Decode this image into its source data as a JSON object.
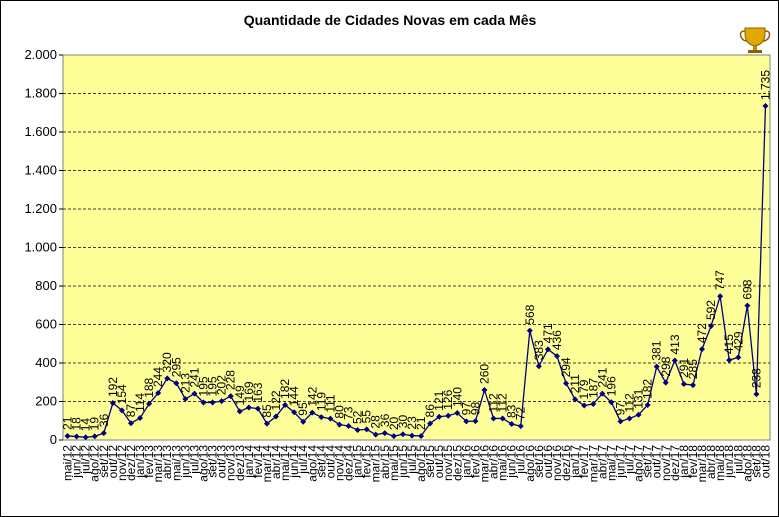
{
  "chart_data": {
    "type": "line",
    "title": "Quantidade de Cidades Novas em cada Mês",
    "categories": [
      "mai/12",
      "jun/12",
      "jul/12",
      "ago/12",
      "set/12",
      "out/12",
      "nov/12",
      "dez/12",
      "jan/13",
      "fev/13",
      "mar/13",
      "abr/13",
      "mai/13",
      "jun/13",
      "jul/13",
      "ago/13",
      "set/13",
      "out/13",
      "nov/13",
      "dez/13",
      "jan/14",
      "fev/14",
      "mar/14",
      "abr/14",
      "mai/14",
      "jun/14",
      "jul/14",
      "ago/14",
      "set/14",
      "out/14",
      "nov/14",
      "dez/14",
      "jan/15",
      "fev/15",
      "mar/15",
      "abr/15",
      "mai/15",
      "jun/15",
      "jul/15",
      "ago/15",
      "set/15",
      "out/15",
      "nov/15",
      "dez/15",
      "jan/16",
      "fev/16",
      "mar/16",
      "abr/16",
      "mai/16",
      "jun/16",
      "jul/16",
      "ago/16",
      "set/16",
      "out/16",
      "nov/16",
      "dez/16",
      "jan/17",
      "fev/17",
      "mar/17",
      "abr/17",
      "mai/17",
      "jun/17",
      "jul/17",
      "ago/17",
      "set/17",
      "out/17",
      "nov/17",
      "dez/17",
      "jan/18",
      "fev/18",
      "mar/18",
      "abr/18",
      "mai/18",
      "jun/18",
      "jul/18",
      "ago/18",
      "set/18",
      "out/18"
    ],
    "values": [
      21,
      18,
      14,
      19,
      36,
      192,
      154,
      87,
      114,
      188,
      244,
      320,
      295,
      213,
      241,
      195,
      195,
      202,
      228,
      149,
      169,
      163,
      85,
      122,
      182,
      144,
      95,
      142,
      119,
      111,
      80,
      73,
      52,
      55,
      28,
      36,
      20,
      30,
      23,
      21,
      86,
      121,
      126,
      140,
      97,
      98,
      260,
      112,
      112,
      83,
      72,
      568,
      383,
      471,
      436,
      294,
      211,
      179,
      187,
      241,
      196,
      97,
      112,
      131,
      182,
      381,
      298,
      413,
      291,
      285,
      472,
      592,
      747,
      415,
      429,
      698,
      238,
      1735
    ],
    "value_labels": [
      "21",
      "18",
      "14",
      "19",
      "36",
      "192",
      "154",
      "87",
      "114",
      "188",
      "244",
      "320",
      "295",
      "213",
      "241",
      "195",
      "195",
      "202",
      "228",
      "149",
      "169",
      "163",
      "85",
      "122",
      "182",
      "144",
      "95",
      "142",
      "119",
      "111",
      "80",
      "73",
      "52",
      "55",
      "28",
      "36",
      "20",
      "30",
      "23",
      "21",
      "86",
      "121",
      "126",
      "140",
      "97",
      "98",
      "260",
      "112",
      "112",
      "83",
      "72",
      "568",
      "383",
      "471",
      "436",
      "294",
      "211",
      "179",
      "187",
      "241",
      "196",
      "97",
      "112",
      "131",
      "182",
      "381",
      "298",
      "413",
      "291",
      "285",
      "472",
      "592",
      "747",
      "415",
      "429",
      "698",
      "238",
      "1.735"
    ],
    "color": "#000080",
    "ylim": [
      0,
      2000
    ],
    "yticks": [
      0,
      200,
      400,
      600,
      800,
      {
        "value": 1000,
        "label": "1.000"
      },
      {
        "value": 1200,
        "label": "1.200"
      },
      {
        "value": 1400,
        "label": "1.400"
      },
      {
        "value": 1600,
        "label": "1.600"
      },
      {
        "value": 1800,
        "label": "1.800"
      },
      {
        "value": 2000,
        "label": "2.000"
      }
    ],
    "grid": true
  }
}
